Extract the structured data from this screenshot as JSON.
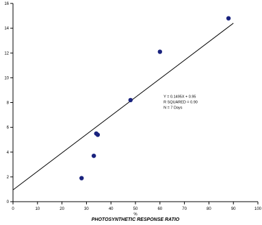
{
  "chart_data": {
    "type": "scatter",
    "title": "",
    "xlabel": "PHOTOSYNTHETIC RESPONSE RATIO",
    "x_unit_label": "%",
    "ylabel": "",
    "xlim": [
      0,
      100
    ],
    "ylim": [
      0,
      16
    ],
    "x_ticks": [
      0,
      10,
      20,
      30,
      40,
      50,
      60,
      70,
      80,
      90,
      100
    ],
    "y_ticks": [
      0,
      2,
      4,
      6,
      8,
      10,
      12,
      14,
      16
    ],
    "grid": false,
    "points": [
      {
        "x": 28,
        "y": 1.9
      },
      {
        "x": 33,
        "y": 3.7
      },
      {
        "x": 34,
        "y": 5.5
      },
      {
        "x": 34.6,
        "y": 5.4
      },
      {
        "x": 48,
        "y": 8.2
      },
      {
        "x": 60,
        "y": 12.1
      },
      {
        "x": 88,
        "y": 14.8
      }
    ],
    "fit_line": {
      "slope": 0.1495,
      "intercept": 0.95
    },
    "annotation_lines": [
      "Y = 0.1495X + 0.95",
      "R SQUARED = 0.90",
      "N = 7 Days"
    ],
    "marker_color": "#1a237e",
    "line_color": "#000000"
  }
}
